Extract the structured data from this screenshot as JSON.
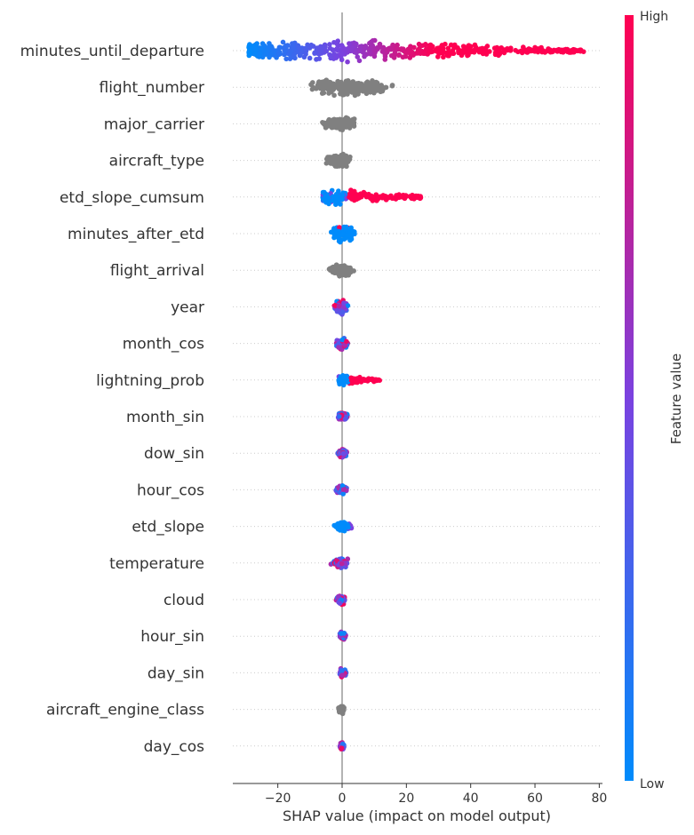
{
  "chart_data": {
    "type": "scatter",
    "subtype": "shap_beeswarm_summary",
    "xlabel": "SHAP value (impact on model output)",
    "xlim": [
      -34,
      81
    ],
    "xticks": [
      -20,
      0,
      20,
      40,
      60,
      80
    ],
    "xtick_labels": [
      "−20",
      "0",
      "20",
      "40",
      "60",
      "80"
    ],
    "grid": false,
    "colors": {
      "low": "#008bfb",
      "mid": "#7a42e0",
      "high": "#ff0051",
      "no_value": "#808080",
      "zero_line": "#999999"
    },
    "colorbar": {
      "label": "Feature value",
      "high_label": "High",
      "low_label": "Low",
      "placement": "right"
    },
    "features": [
      {
        "name": "minutes_until_departure",
        "min": -29,
        "max": 76,
        "colored": true,
        "pattern": "gradient_lr",
        "density": 0.85,
        "width": 1.0
      },
      {
        "name": "flight_number",
        "min": -15,
        "max": 23,
        "colored": false,
        "pattern": "gray",
        "density": 0.8,
        "width": 0.9
      },
      {
        "name": "major_carrier",
        "min": -10,
        "max": 6,
        "colored": false,
        "pattern": "gray",
        "density": 0.7,
        "width": 0.75
      },
      {
        "name": "aircraft_type",
        "min": -8,
        "max": 4,
        "colored": false,
        "pattern": "gray",
        "density": 0.7,
        "width": 0.7
      },
      {
        "name": "etd_slope_cumsum",
        "min": -6,
        "max": 25,
        "colored": true,
        "pattern": "blue_center_red_tail",
        "density": 0.6,
        "width": 0.75
      },
      {
        "name": "minutes_after_etd",
        "min": -5,
        "max": 7,
        "colored": true,
        "pattern": "blue",
        "density": 0.7,
        "width": 0.85
      },
      {
        "name": "flight_arrival",
        "min": -7,
        "max": 5,
        "colored": false,
        "pattern": "gray",
        "density": 0.6,
        "width": 0.7
      },
      {
        "name": "year",
        "min": -4,
        "max": 3,
        "colored": true,
        "pattern": "mixed",
        "density": 0.5,
        "width": 0.7
      },
      {
        "name": "month_cos",
        "min": -3,
        "max": 3,
        "colored": true,
        "pattern": "mixed",
        "density": 0.45,
        "width": 0.6
      },
      {
        "name": "lightning_prob",
        "min": -1,
        "max": 12,
        "colored": true,
        "pattern": "blue_center_red_tail",
        "density": 0.4,
        "width": 0.5
      },
      {
        "name": "month_sin",
        "min": -2,
        "max": 3,
        "colored": true,
        "pattern": "mixed",
        "density": 0.4,
        "width": 0.5
      },
      {
        "name": "dow_sin",
        "min": -2,
        "max": 2,
        "colored": true,
        "pattern": "mixed",
        "density": 0.4,
        "width": 0.5
      },
      {
        "name": "hour_cos",
        "min": -3,
        "max": 3,
        "colored": true,
        "pattern": "mixed",
        "density": 0.4,
        "width": 0.5
      },
      {
        "name": "etd_slope",
        "min": -4,
        "max": 5,
        "colored": true,
        "pattern": "blue_center_purple_tail",
        "density": 0.4,
        "width": 0.5
      },
      {
        "name": "temperature",
        "min": -5,
        "max": 2,
        "colored": true,
        "pattern": "mixed",
        "density": 0.4,
        "width": 0.5
      },
      {
        "name": "cloud",
        "min": -3,
        "max": 1,
        "colored": true,
        "pattern": "mixed",
        "density": 0.35,
        "width": 0.45
      },
      {
        "name": "hour_sin",
        "min": -1,
        "max": 2,
        "colored": true,
        "pattern": "mixed",
        "density": 0.35,
        "width": 0.45
      },
      {
        "name": "day_sin",
        "min": -1,
        "max": 2,
        "colored": true,
        "pattern": "mixed",
        "density": 0.35,
        "width": 0.45
      },
      {
        "name": "aircraft_engine_class",
        "min": -2,
        "max": 1,
        "colored": false,
        "pattern": "gray",
        "density": 0.35,
        "width": 0.45
      },
      {
        "name": "day_cos",
        "min": -1,
        "max": 1,
        "colored": true,
        "pattern": "mixed",
        "density": 0.35,
        "width": 0.45
      }
    ]
  }
}
